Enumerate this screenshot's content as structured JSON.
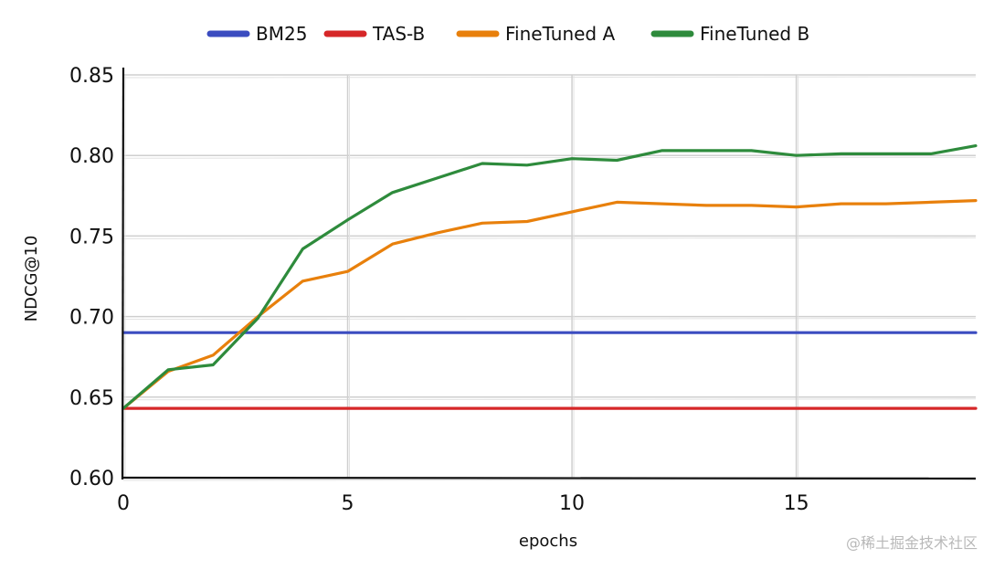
{
  "chart_data": {
    "type": "line",
    "title": "",
    "xlabel": "epochs",
    "ylabel": "NDCG@10",
    "xlim": [
      0,
      19
    ],
    "ylim": [
      0.6,
      0.85
    ],
    "x_ticks": [
      0,
      5,
      10,
      15
    ],
    "x_tick_labels": [
      "0",
      "5",
      "10",
      "15"
    ],
    "y_ticks": [
      0.6,
      0.65,
      0.7,
      0.75,
      0.8,
      0.85
    ],
    "y_tick_labels": [
      "0.60",
      "0.65",
      "0.70",
      "0.75",
      "0.80",
      "0.85"
    ],
    "grid": true,
    "legend_position": "top-center",
    "x": [
      0,
      1,
      2,
      3,
      4,
      5,
      6,
      7,
      8,
      9,
      10,
      11,
      12,
      13,
      14,
      15,
      16,
      17,
      18,
      19
    ],
    "series": [
      {
        "name": "BM25",
        "color": "#3b4cc0",
        "values": [
          0.69,
          0.69,
          0.69,
          0.69,
          0.69,
          0.69,
          0.69,
          0.69,
          0.69,
          0.69,
          0.69,
          0.69,
          0.69,
          0.69,
          0.69,
          0.69,
          0.69,
          0.69,
          0.69,
          0.69
        ]
      },
      {
        "name": "TAS-B",
        "color": "#d62728",
        "values": [
          0.643,
          0.643,
          0.643,
          0.643,
          0.643,
          0.643,
          0.643,
          0.643,
          0.643,
          0.643,
          0.643,
          0.643,
          0.643,
          0.643,
          0.643,
          0.643,
          0.643,
          0.643,
          0.643,
          0.643
        ]
      },
      {
        "name": "FineTuned A",
        "color": "#e8800c",
        "values": [
          0.643,
          0.666,
          0.676,
          0.7,
          0.722,
          0.728,
          0.745,
          0.752,
          0.758,
          0.759,
          0.765,
          0.771,
          0.77,
          0.769,
          0.769,
          0.768,
          0.77,
          0.77,
          0.771,
          0.772
        ]
      },
      {
        "name": "FineTuned B",
        "color": "#2e8b3c",
        "values": [
          0.643,
          0.667,
          0.67,
          0.699,
          0.742,
          0.76,
          0.777,
          0.786,
          0.795,
          0.794,
          0.798,
          0.797,
          0.803,
          0.803,
          0.803,
          0.8,
          0.801,
          0.801,
          0.801,
          0.806
        ]
      }
    ]
  },
  "watermark": "@稀土掘金技术社区"
}
